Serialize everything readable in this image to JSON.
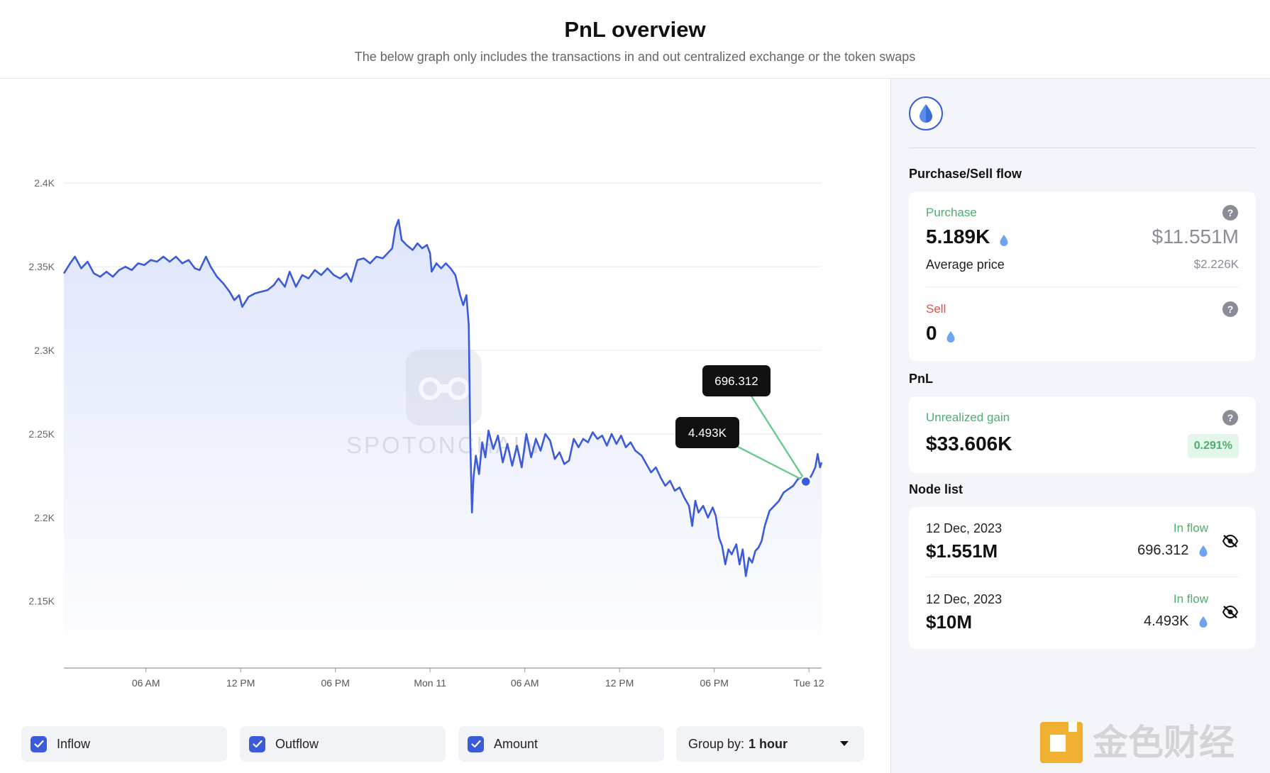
{
  "header": {
    "title": "PnL overview",
    "subtitle": "The below graph only includes the transactions in and out centralized exchange or the token swaps"
  },
  "colors": {
    "line": "#3b5bdb",
    "area_top": "#dfe5fb",
    "grid": "#e6e8ee",
    "inflow": "#4caf6e",
    "sell": "#d9534f",
    "tooltip_bg": "#111111",
    "connector": "#6cc98c"
  },
  "chart_data": {
    "type": "area",
    "y_ticks": [
      "2.4K",
      "2.35K",
      "2.3K",
      "2.25K",
      "2.2K",
      "2.15K"
    ],
    "y_tick_values": [
      2400,
      2350,
      2300,
      2250,
      2200,
      2150
    ],
    "ylim": [
      2110,
      2420
    ],
    "x_ticks": [
      "06 AM",
      "12 PM",
      "06 PM",
      "Mon 11",
      "06 AM",
      "12 PM",
      "06 PM",
      "Tue 12"
    ],
    "x_tick_hours": [
      6,
      12,
      18,
      24,
      30,
      36,
      42,
      48
    ],
    "xlim_hours": [
      0.8,
      48.8
    ],
    "grid": true,
    "series": [
      {
        "values": [
          [
            0.8,
            2346
          ],
          [
            1.2,
            2352
          ],
          [
            1.5,
            2356
          ],
          [
            1.9,
            2349
          ],
          [
            2.3,
            2353
          ],
          [
            2.7,
            2346
          ],
          [
            3.1,
            2344
          ],
          [
            3.5,
            2347
          ],
          [
            3.9,
            2344
          ],
          [
            4.3,
            2348
          ],
          [
            4.7,
            2350
          ],
          [
            5.1,
            2348
          ],
          [
            5.5,
            2352
          ],
          [
            5.9,
            2351
          ],
          [
            6.3,
            2354
          ],
          [
            6.7,
            2353
          ],
          [
            7.1,
            2356
          ],
          [
            7.5,
            2353
          ],
          [
            7.9,
            2356
          ],
          [
            8.3,
            2352
          ],
          [
            8.7,
            2354
          ],
          [
            9.1,
            2349
          ],
          [
            9.4,
            2348
          ],
          [
            9.8,
            2356
          ],
          [
            10.1,
            2350
          ],
          [
            10.5,
            2344
          ],
          [
            10.9,
            2340
          ],
          [
            11.3,
            2335
          ],
          [
            11.6,
            2330
          ],
          [
            11.9,
            2333
          ],
          [
            12.1,
            2326
          ],
          [
            12.5,
            2332
          ],
          [
            12.9,
            2334
          ],
          [
            13.3,
            2335
          ],
          [
            13.7,
            2336
          ],
          [
            14.1,
            2339
          ],
          [
            14.4,
            2343
          ],
          [
            14.8,
            2338
          ],
          [
            15.1,
            2347
          ],
          [
            15.5,
            2338
          ],
          [
            15.9,
            2345
          ],
          [
            16.3,
            2343
          ],
          [
            16.7,
            2348
          ],
          [
            17.1,
            2345
          ],
          [
            17.5,
            2349
          ],
          [
            17.9,
            2345
          ],
          [
            18.3,
            2343
          ],
          [
            18.7,
            2346
          ],
          [
            19.0,
            2341
          ],
          [
            19.4,
            2354
          ],
          [
            19.8,
            2355
          ],
          [
            20.2,
            2352
          ],
          [
            20.6,
            2356
          ],
          [
            21.0,
            2355
          ],
          [
            21.3,
            2358
          ],
          [
            21.6,
            2361
          ],
          [
            21.8,
            2373
          ],
          [
            22.0,
            2378
          ],
          [
            22.2,
            2366
          ],
          [
            22.5,
            2363
          ],
          [
            22.9,
            2360
          ],
          [
            23.2,
            2364
          ],
          [
            23.5,
            2361
          ],
          [
            23.8,
            2363
          ],
          [
            24.0,
            2358
          ],
          [
            24.1,
            2347
          ],
          [
            24.4,
            2352
          ],
          [
            24.7,
            2349
          ],
          [
            25.0,
            2352
          ],
          [
            25.3,
            2349
          ],
          [
            25.6,
            2345
          ],
          [
            25.9,
            2333
          ],
          [
            26.1,
            2327
          ],
          [
            26.3,
            2333
          ],
          [
            26.45,
            2315
          ],
          [
            26.55,
            2245
          ],
          [
            26.65,
            2203
          ],
          [
            26.75,
            2224
          ],
          [
            26.9,
            2237
          ],
          [
            27.1,
            2226
          ],
          [
            27.3,
            2245
          ],
          [
            27.5,
            2236
          ],
          [
            27.7,
            2252
          ],
          [
            28.0,
            2241
          ],
          [
            28.3,
            2249
          ],
          [
            28.6,
            2233
          ],
          [
            28.9,
            2244
          ],
          [
            29.2,
            2231
          ],
          [
            29.5,
            2243
          ],
          [
            29.8,
            2230
          ],
          [
            30.1,
            2250
          ],
          [
            30.4,
            2236
          ],
          [
            30.7,
            2247
          ],
          [
            31.0,
            2240
          ],
          [
            31.3,
            2250
          ],
          [
            31.6,
            2246
          ],
          [
            31.9,
            2235
          ],
          [
            32.2,
            2239
          ],
          [
            32.5,
            2232
          ],
          [
            32.8,
            2234
          ],
          [
            33.1,
            2247
          ],
          [
            33.4,
            2242
          ],
          [
            33.7,
            2247
          ],
          [
            34.0,
            2245
          ],
          [
            34.3,
            2251
          ],
          [
            34.6,
            2247
          ],
          [
            34.9,
            2249
          ],
          [
            35.2,
            2243
          ],
          [
            35.5,
            2250
          ],
          [
            35.8,
            2244
          ],
          [
            36.1,
            2249
          ],
          [
            36.4,
            2242
          ],
          [
            36.7,
            2245
          ],
          [
            37.0,
            2240
          ],
          [
            37.4,
            2237
          ],
          [
            37.7,
            2232
          ],
          [
            38.0,
            2227
          ],
          [
            38.3,
            2230
          ],
          [
            38.6,
            2224
          ],
          [
            38.9,
            2219
          ],
          [
            39.2,
            2222
          ],
          [
            39.5,
            2216
          ],
          [
            39.8,
            2218
          ],
          [
            40.1,
            2212
          ],
          [
            40.4,
            2207
          ],
          [
            40.6,
            2195
          ],
          [
            40.8,
            2210
          ],
          [
            41.0,
            2203
          ],
          [
            41.3,
            2207
          ],
          [
            41.6,
            2200
          ],
          [
            41.9,
            2206
          ],
          [
            42.1,
            2201
          ],
          [
            42.3,
            2188
          ],
          [
            42.5,
            2183
          ],
          [
            42.7,
            2172
          ],
          [
            42.9,
            2181
          ],
          [
            43.1,
            2178
          ],
          [
            43.4,
            2184
          ],
          [
            43.6,
            2172
          ],
          [
            43.8,
            2181
          ],
          [
            44.0,
            2165
          ],
          [
            44.2,
            2176
          ],
          [
            44.4,
            2173
          ],
          [
            44.6,
            2180
          ],
          [
            44.8,
            2182
          ],
          [
            45.0,
            2186
          ],
          [
            45.2,
            2195
          ],
          [
            45.5,
            2204
          ],
          [
            45.8,
            2207
          ],
          [
            46.1,
            2210
          ],
          [
            46.4,
            2215
          ],
          [
            46.7,
            2217
          ],
          [
            47.0,
            2219
          ],
          [
            47.3,
            2223
          ],
          [
            47.6,
            2224
          ],
          [
            47.9,
            2221
          ],
          [
            48.2,
            2226
          ],
          [
            48.4,
            2230
          ],
          [
            48.55,
            2238
          ],
          [
            48.7,
            2230
          ],
          [
            48.8,
            2233
          ]
        ]
      }
    ],
    "marker": {
      "x": 47.8,
      "y": 2221.5
    },
    "annotations": [
      {
        "label": "696.312",
        "x": 47.8,
        "y": 2221.5
      },
      {
        "label": "4.493K",
        "x": 47.8,
        "y": 2221.5
      }
    ]
  },
  "controls": {
    "inflow_label": "Inflow",
    "outflow_label": "Outflow",
    "amount_label": "Amount",
    "group_by_label": "Group by:",
    "group_by_value": "1 hour"
  },
  "side": {
    "purchase_sell_title": "Purchase/Sell flow",
    "purchase": {
      "label": "Purchase",
      "amount": "5.189K",
      "usd_value": "$11.551M",
      "avg_price_label": "Average price",
      "avg_price_value": "$2.226K",
      "help": "?"
    },
    "sell": {
      "label": "Sell",
      "amount": "0",
      "help": "?"
    },
    "pnl_title": "PnL",
    "pnl": {
      "label": "Unrealized gain",
      "value": "$33.606K",
      "percent": "0.291%",
      "help": "?"
    },
    "node_list_title": "Node list",
    "nodes": [
      {
        "date": "12 Dec, 2023",
        "usd": "$1.551M",
        "direction": "In flow",
        "amount": "696.312"
      },
      {
        "date": "12 Dec, 2023",
        "usd": "$10M",
        "direction": "In flow",
        "amount": "4.493K"
      }
    ]
  },
  "watermark": {
    "chart_logo_text": "SPOTONCHAIN",
    "corner_logo_text": "金色财经"
  }
}
